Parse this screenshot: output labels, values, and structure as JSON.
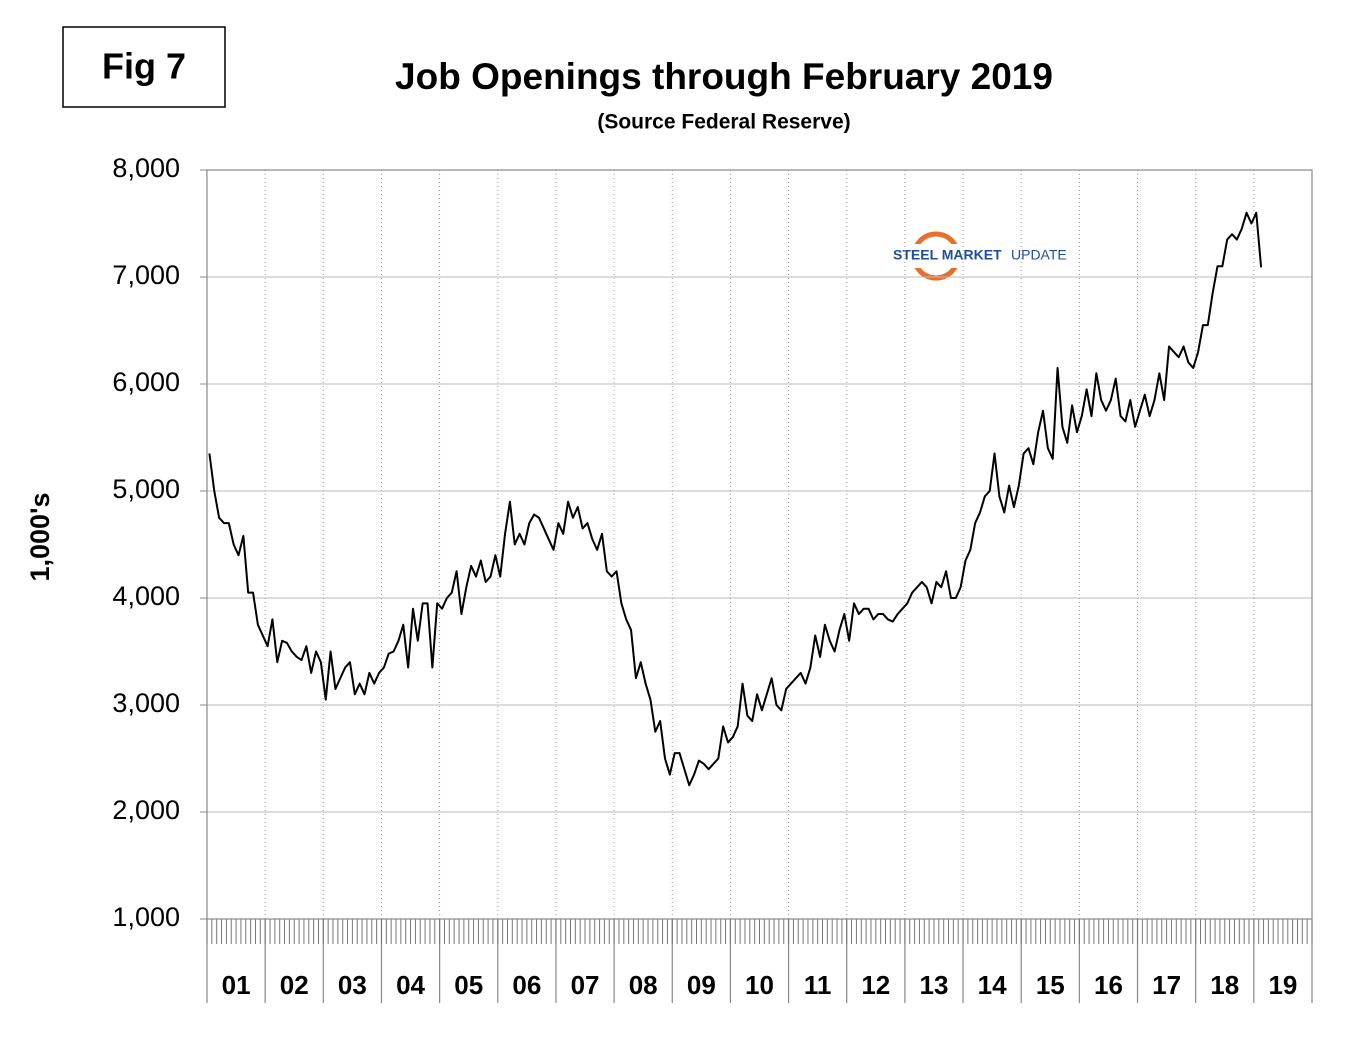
{
  "chart_data": {
    "type": "line",
    "figure_label": "Fig 7",
    "title": "Job Openings through February 2019",
    "subtitle": "(Source Federal Reserve)",
    "y_label": "1,000's",
    "logo": [
      "STEEL MARKET",
      "UPDATE"
    ],
    "color": "#000000",
    "grid": true,
    "ylim": [
      1000,
      8000
    ],
    "yticks": [
      {
        "value": 1000,
        "label": "1,000"
      },
      {
        "value": 2000,
        "label": "2,000"
      },
      {
        "value": 3000,
        "label": "3,000"
      },
      {
        "value": 4000,
        "label": "4,000"
      },
      {
        "value": 5000,
        "label": "5,000"
      },
      {
        "value": 6000,
        "label": "6,000"
      },
      {
        "value": 7000,
        "label": "7,000"
      },
      {
        "value": 8000,
        "label": "8,000"
      }
    ],
    "categories": [
      null,
      null,
      null,
      null,
      null,
      null,
      "01",
      null,
      null,
      null,
      null,
      null,
      null,
      null,
      null,
      null,
      null,
      null,
      "02",
      null,
      null,
      null,
      null,
      null,
      null,
      null,
      null,
      null,
      null,
      null,
      "03",
      null,
      null,
      null,
      null,
      null,
      null,
      null,
      null,
      null,
      null,
      null,
      "04",
      null,
      null,
      null,
      null,
      null,
      null,
      null,
      null,
      null,
      null,
      null,
      "05",
      null,
      null,
      null,
      null,
      null,
      null,
      null,
      null,
      null,
      null,
      null,
      "06",
      null,
      null,
      null,
      null,
      null,
      null,
      null,
      null,
      null,
      null,
      null,
      "07",
      null,
      null,
      null,
      null,
      null,
      null,
      null,
      null,
      null,
      null,
      null,
      "08",
      null,
      null,
      null,
      null,
      null,
      null,
      null,
      null,
      null,
      null,
      null,
      "09",
      null,
      null,
      null,
      null,
      null,
      null,
      null,
      null,
      null,
      null,
      null,
      "10",
      null,
      null,
      null,
      null,
      null,
      null,
      null,
      null,
      null,
      null,
      null,
      "11",
      null,
      null,
      null,
      null,
      null,
      null,
      null,
      null,
      null,
      null,
      null,
      "12",
      null,
      null,
      null,
      null,
      null,
      null,
      null,
      null,
      null,
      null,
      null,
      "13",
      null,
      null,
      null,
      null,
      null,
      null,
      null,
      null,
      null,
      null,
      null,
      "14",
      null,
      null,
      null,
      null,
      null,
      null,
      null,
      null,
      null,
      null,
      null,
      "15",
      null,
      null,
      null,
      null,
      null,
      null,
      null,
      null,
      null,
      null,
      null,
      "16",
      null,
      null,
      null,
      null,
      null,
      null,
      null,
      null,
      null,
      null,
      null,
      "17",
      null,
      null,
      null,
      null,
      null,
      null,
      null,
      null,
      null,
      null,
      null,
      "18",
      null,
      null,
      null,
      null,
      null,
      null,
      null,
      null,
      null,
      null,
      null,
      "19",
      null,
      null,
      null,
      null,
      null
    ],
    "values": [
      5350,
      5000,
      4750,
      4700,
      4700,
      4500,
      4400,
      4580,
      4050,
      4050,
      3750,
      3650,
      3550,
      3800,
      3400,
      3600,
      3580,
      3500,
      3450,
      3420,
      3550,
      3300,
      3500,
      3400,
      3050,
      3500,
      3150,
      3250,
      3350,
      3400,
      3100,
      3200,
      3100,
      3300,
      3200,
      3300,
      3350,
      3480,
      3500,
      3600,
      3750,
      3350,
      3900,
      3600,
      3950,
      3950,
      3350,
      3950,
      3900,
      4000,
      4050,
      4250,
      3850,
      4100,
      4300,
      4200,
      4350,
      4150,
      4200,
      4400,
      4200,
      4600,
      4900,
      4500,
      4600,
      4500,
      4700,
      4780,
      4750,
      4650,
      4550,
      4450,
      4700,
      4600,
      4900,
      4750,
      4850,
      4650,
      4700,
      4550,
      4450,
      4600,
      4250,
      4200,
      4250,
      3950,
      3800,
      3700,
      3250,
      3400,
      3200,
      3050,
      2750,
      2850,
      2500,
      2350,
      2550,
      2550,
      2400,
      2250,
      2350,
      2480,
      2450,
      2400,
      2450,
      2500,
      2800,
      2650,
      2700,
      2800,
      3200,
      2900,
      2850,
      3100,
      2950,
      3100,
      3250,
      3000,
      2950,
      3150,
      3200,
      3250,
      3300,
      3200,
      3350,
      3650,
      3450,
      3750,
      3600,
      3500,
      3700,
      3850,
      3600,
      3950,
      3850,
      3900,
      3900,
      3800,
      3850,
      3850,
      3800,
      3780,
      3850,
      3900,
      3950,
      4050,
      4100,
      4150,
      4100,
      3950,
      4150,
      4100,
      4250,
      4000,
      4000,
      4100,
      4350,
      4450,
      4700,
      4800,
      4950,
      5000,
      5350,
      4950,
      4800,
      5050,
      4850,
      5050,
      5350,
      5400,
      5250,
      5550,
      5750,
      5400,
      5300,
      6150,
      5600,
      5450,
      5800,
      5550,
      5700,
      5950,
      5700,
      6100,
      5850,
      5750,
      5850,
      6050,
      5700,
      5650,
      5850,
      5600,
      5750,
      5900,
      5700,
      5850,
      6100,
      5850,
      6350,
      6300,
      6250,
      6350,
      6200,
      6150,
      6300,
      6550,
      6550,
      6850,
      7100,
      7100,
      7350,
      7400,
      7350,
      7450,
      7600,
      7500,
      7600,
      7090,
      null,
      null,
      null,
      null,
      null,
      null,
      null,
      null,
      null,
      null
    ]
  }
}
